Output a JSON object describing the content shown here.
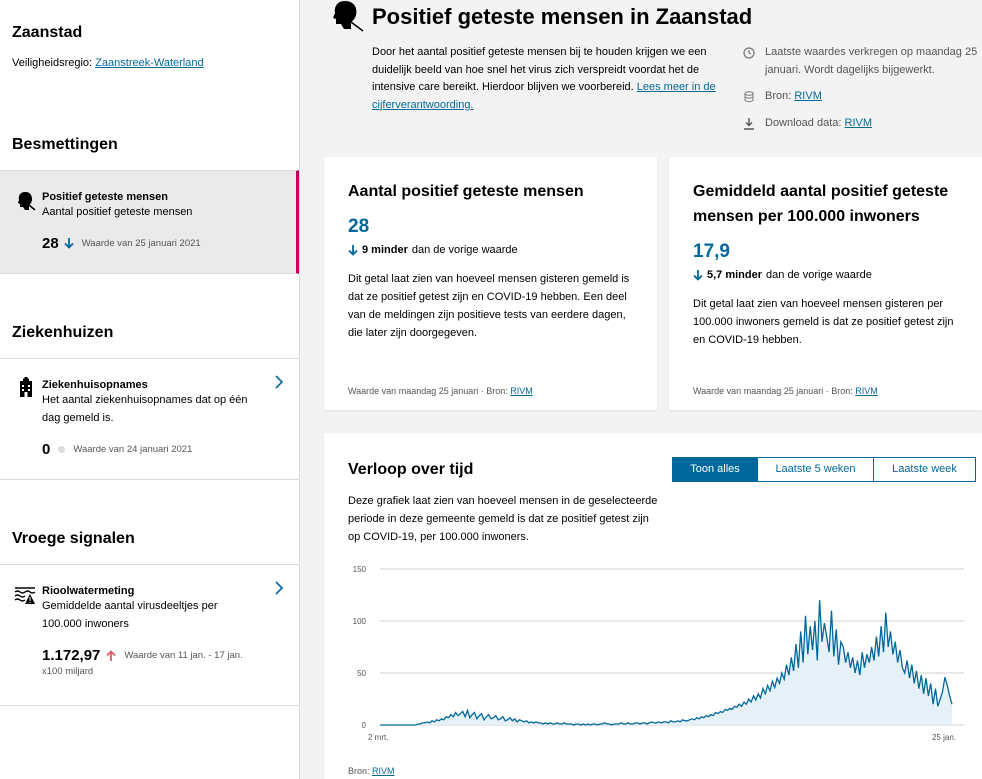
{
  "sidebar": {
    "region_title": "Zaanstad",
    "safety_label": "Veiligheidsregio:",
    "safety_link": "Zaanstreek-Waterland",
    "cat_infections": "Besmettingen",
    "item_positive": {
      "title": "Positief geteste mensen",
      "desc": "Aantal positief geteste mensen",
      "value": "28",
      "note": "Waarde van 25 januari 2021"
    },
    "cat_hospitals": "Ziekenhuizen",
    "item_hospital": {
      "title": "Ziekenhuisopnames",
      "desc": "Het aantal ziekenhuisopnames dat op één dag gemeld is.",
      "value": "0",
      "note": "Waarde van 24 januari 2021"
    },
    "cat_signals": "Vroege signalen",
    "item_sewer": {
      "title": "Rioolwatermeting",
      "desc": "Gemiddelde aantal virusdeeltjes per 100.000 inwoners",
      "value": "1.172,97",
      "note": "Waarde van 11 jan. - 17 jan.",
      "unit": "x100 miljard"
    }
  },
  "header": {
    "title": "Positief geteste mensen in Zaanstad",
    "intro": "Door het aantal positief geteste mensen bij te houden krijgen we een duidelijk beeld van hoe snel het virus zich verspreidt voordat het de intensive care bereikt. Hierdoor blijven we voorbereid. ",
    "intro_link": "Lees meer in de cijferverantwoording.",
    "updated": "Laatste waardes verkregen op maandag 25 januari. Wordt dagelijks bijgewerkt.",
    "source_label": "Bron:",
    "source_link": "RIVM",
    "download_label": "Download data:",
    "download_link": "RIVM"
  },
  "card_total": {
    "title": "Aantal positief geteste mensen",
    "value": "28",
    "diff_amount": "9 minder",
    "diff_text": "dan de vorige waarde",
    "text": "Dit getal laat zien van hoeveel mensen gisteren gemeld is dat ze positief getest zijn en COVID-19 hebben. Een deel van de meldingen zijn positieve tests van eerdere dagen, die later zijn doorgegeven.",
    "foot": "Waarde van maandag 25 januari · Bron: ",
    "foot_link": "RIVM"
  },
  "card_avg": {
    "title": "Gemiddeld aantal positief geteste mensen per 100.000 inwoners",
    "value": "17,9",
    "diff_amount": "5,7 minder",
    "diff_text": "dan de vorige waarde",
    "text": "Dit getal laat zien van hoeveel mensen gisteren per 100.000 inwoners gemeld is dat ze positief getest zijn en COVID-19 hebben.",
    "foot": "Waarde van maandag 25 januari · Bron: ",
    "foot_link": "RIVM"
  },
  "chart_card": {
    "title": "Verloop over tijd",
    "tabs": [
      "Toon alles",
      "Laatste 5 weken",
      "Laatste week"
    ],
    "text": "Deze grafiek laat zien van hoeveel mensen in de geselecteerde periode in deze gemeente gemeld is dat ze positief getest zijn op COVID-19, per 100.000 inwoners.",
    "source_label": "Bron:",
    "source_link": "RIVM"
  },
  "colors": {
    "accent": "#01689b",
    "active_border": "#ca005d",
    "up_arrow": "#e05a6a"
  },
  "chart_data": {
    "type": "area",
    "title": "",
    "xlabel": "",
    "ylabel": "",
    "x_ticks": [
      "2 mrt.",
      "25 jan."
    ],
    "y_ticks": [
      0,
      50,
      100,
      150
    ],
    "ylim": [
      0,
      150
    ],
    "grid": true,
    "series": [
      {
        "values": [
          0,
          0,
          0,
          0,
          0,
          0,
          0,
          0,
          0,
          0,
          0,
          0,
          0,
          0,
          0,
          0,
          1,
          1,
          2,
          2,
          3,
          2,
          4,
          3,
          5,
          4,
          6,
          5,
          8,
          7,
          10,
          8,
          12,
          9,
          11,
          13,
          8,
          14,
          7,
          10,
          12,
          6,
          9,
          11,
          5,
          8,
          10,
          6,
          7,
          9,
          5,
          6,
          8,
          4,
          5,
          7,
          4,
          6,
          3,
          5,
          4,
          3,
          4,
          2,
          3,
          2,
          3,
          2,
          2,
          1,
          2,
          1,
          2,
          1,
          1,
          2,
          1,
          1,
          2,
          1,
          1,
          1,
          0,
          1,
          1,
          0,
          1,
          0,
          1,
          0,
          1,
          1,
          0,
          1,
          1,
          2,
          1,
          1,
          0,
          1,
          1,
          1,
          2,
          1,
          1,
          2,
          1,
          1,
          2,
          2,
          1,
          2,
          2,
          1,
          2,
          3,
          2,
          2,
          3,
          2,
          3,
          3,
          2,
          4,
          3,
          3,
          4,
          3,
          5,
          4,
          4,
          5,
          6,
          5,
          7,
          6,
          8,
          7,
          9,
          8,
          10,
          9,
          12,
          11,
          13,
          12,
          15,
          14,
          16,
          15,
          18,
          17,
          20,
          18,
          22,
          20,
          25,
          22,
          28,
          24,
          30,
          26,
          35,
          30,
          38,
          33,
          42,
          36,
          45,
          40,
          50,
          44,
          58,
          48,
          65,
          52,
          78,
          55,
          90,
          60,
          105,
          68,
          95,
          72,
          100,
          62,
          120,
          80,
          98,
          85,
          70,
          110,
          66,
          92,
          58,
          80,
          75,
          60,
          70,
          55,
          65,
          50,
          62,
          48,
          70,
          55,
          68,
          60,
          75,
          62,
          85,
          66,
          95,
          70,
          108,
          75,
          90,
          68,
          80,
          60,
          72,
          55,
          50,
          62,
          45,
          58,
          40,
          52,
          35,
          48,
          30,
          45,
          28,
          40,
          20,
          35,
          18,
          25,
          32,
          46,
          38,
          28,
          20
        ]
      }
    ]
  }
}
